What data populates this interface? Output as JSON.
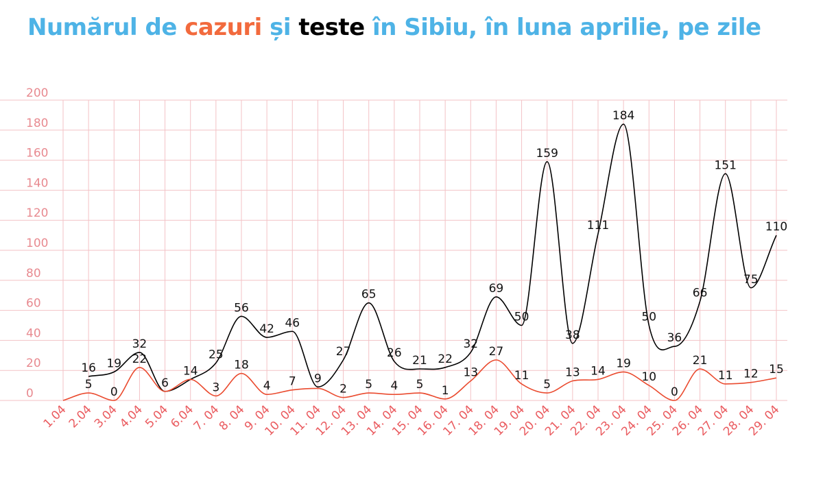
{
  "header": {
    "title_parts": [
      {
        "text": "Numărul de ",
        "color": "#4eb3e6"
      },
      {
        "text": "cazuri",
        "color": "#f26a3d"
      },
      {
        "text": " și ",
        "color": "#4eb3e6"
      },
      {
        "text": "teste",
        "color": "#000000"
      },
      {
        "text": " în Sibiu, în luna aprilie, pe zile",
        "color": "#4eb3e6"
      }
    ]
  },
  "colors": {
    "grid": "#f3c2c6",
    "ytick": "#e88a90",
    "xtick": "#ea5b5f",
    "cases_line": "#ea4a2e",
    "tests_line": "#000000"
  },
  "chart_data": {
    "type": "line",
    "categories": [
      "1.04",
      "2.04",
      "3.04",
      "4.04",
      "5.04",
      "6.04",
      "7. 04",
      "8. 04",
      "9. 04",
      "10. 04",
      "11. 04",
      "12. 04",
      "13. 04",
      "14. 04",
      "15. 04",
      "16. 04",
      "17. 04",
      "18. 04",
      "19. 04",
      "20. 04",
      "21. 04",
      "22. 04",
      "23. 04",
      "24. 04",
      "25. 04",
      "26. 04",
      "27. 04",
      "28. 04",
      "29. 04"
    ],
    "ylim": [
      0,
      200
    ],
    "yticks": [
      0,
      20,
      40,
      60,
      80,
      100,
      120,
      140,
      160,
      180,
      200
    ],
    "grid": true,
    "series": [
      {
        "key": "teste",
        "color": "#000000",
        "values": [
          null,
          16,
          19,
          32,
          6,
          14,
          25,
          56,
          42,
          46,
          9,
          27,
          65,
          26,
          21,
          22,
          32,
          69,
          50,
          159,
          38,
          111,
          184,
          50,
          36,
          66,
          151,
          75,
          110
        ],
        "labels": [
          "",
          "16",
          "19",
          "32",
          "6",
          "14",
          "25",
          "56",
          "42",
          "46",
          "9",
          "27",
          "65",
          "26",
          "21",
          "22",
          "32",
          "69",
          "50",
          "159",
          "38",
          "111",
          "184",
          "50",
          "36",
          "66",
          "151",
          "75",
          "110"
        ]
      },
      {
        "key": "cazuri",
        "color": "#ea4a2e",
        "values": [
          0,
          5,
          0,
          22,
          6,
          14,
          3,
          18,
          4,
          7,
          8,
          2,
          5,
          4,
          5,
          1,
          13,
          27,
          11,
          5,
          13,
          14,
          19,
          10,
          0,
          21,
          11,
          12,
          15
        ],
        "labels": [
          "",
          "5",
          "0",
          "22",
          "",
          "",
          "3",
          "18",
          "4",
          "7",
          "",
          "2",
          "5",
          "4",
          "5",
          "1",
          "13",
          "27",
          "11",
          "5",
          "13",
          "14",
          "19",
          "10",
          "0",
          "21",
          "11",
          "12",
          "15"
        ]
      }
    ]
  }
}
